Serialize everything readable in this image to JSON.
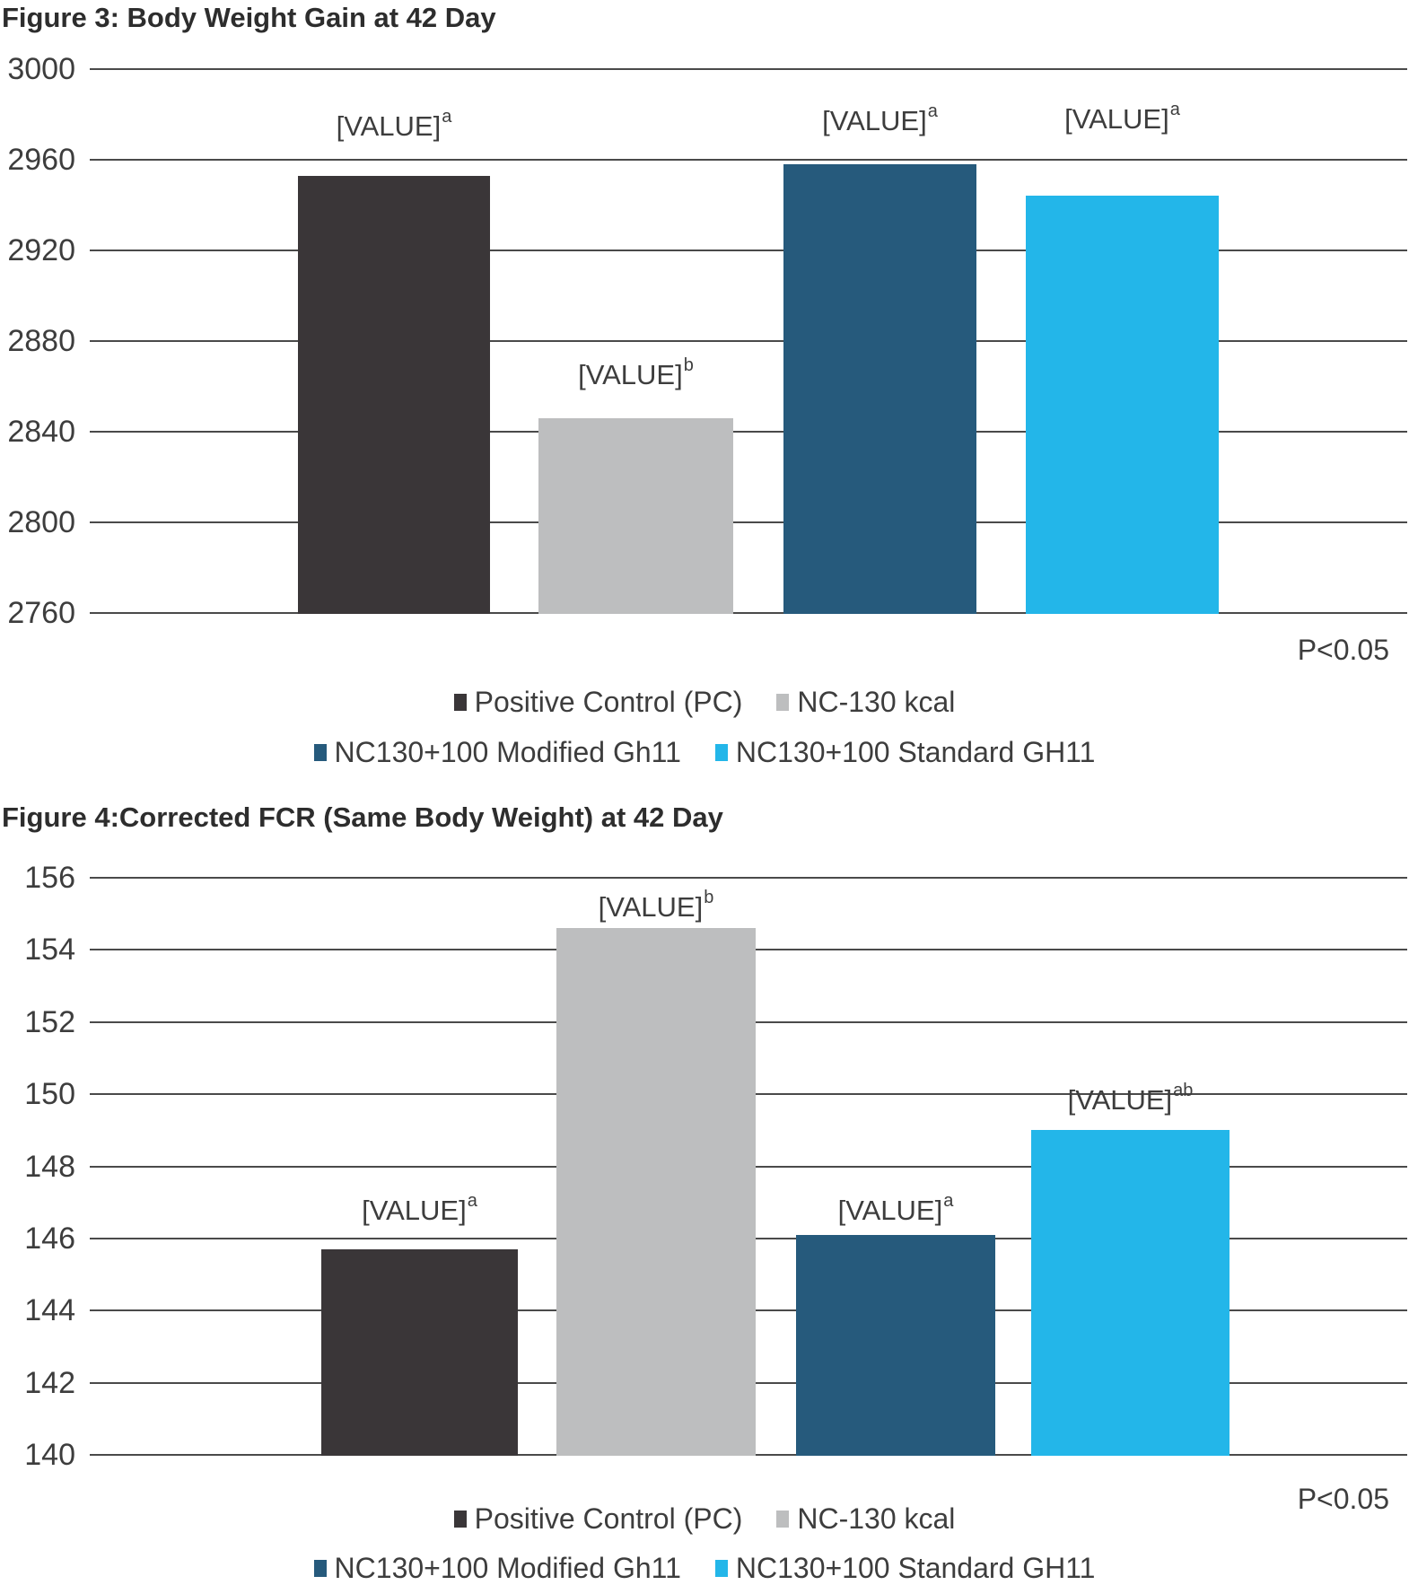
{
  "chart_data": [
    {
      "id": "figure3",
      "type": "bar",
      "title": "Figure 3: Body Weight Gain at 42 Day",
      "categories": [
        "Positive Control (PC)",
        "NC-130 kcal",
        "NC130+100 Modified Gh11",
        "NC130+100 Standard GH11"
      ],
      "values": [
        2953,
        2846,
        2958,
        2944
      ],
      "data_labels": [
        "[VALUE]",
        "[VALUE]",
        "[VALUE]",
        "[VALUE]"
      ],
      "superscripts": [
        "a",
        "b",
        "a",
        "a"
      ],
      "yticks": [
        3000,
        2960,
        2920,
        2880,
        2840,
        2800,
        2760
      ],
      "ylim": [
        2760,
        3000
      ],
      "ytick_step": 40,
      "xlabel": "",
      "ylabel": "",
      "annotation": "P<0.05",
      "grid": true,
      "legend_position": "bottom"
    },
    {
      "id": "figure4",
      "type": "bar",
      "title": "Figure 4:Corrected FCR (Same Body Weight) at 42 Day",
      "categories": [
        "Positive Control (PC)",
        "NC-130 kcal",
        "NC130+100 Modified Gh11",
        "NC130+100 Standard GH11"
      ],
      "values": [
        145.7,
        154.6,
        146.1,
        149.0
      ],
      "data_labels": [
        "[VALUE]",
        "[VALUE]",
        "[VALUE]",
        "[VALUE]"
      ],
      "superscripts": [
        "a",
        "b",
        "a",
        "ab"
      ],
      "yticks": [
        156,
        154,
        152,
        150,
        148,
        146,
        144,
        142,
        140
      ],
      "ylim": [
        140,
        156
      ],
      "ytick_step": 2,
      "xlabel": "",
      "ylabel": "",
      "annotation": "P<0.05",
      "grid": true,
      "legend_position": "bottom"
    }
  ],
  "legend": {
    "items": [
      {
        "label": "Positive Control (PC)",
        "color": "#3a3638"
      },
      {
        "label": "NC-130 kcal",
        "color": "#bdbebf"
      },
      {
        "label": "NC130+100 Modified Gh11",
        "color": "#265a7c"
      },
      {
        "label": "NC130+100 Standard GH11",
        "color": "#23b6e9"
      }
    ],
    "rows": [
      [
        0,
        1
      ],
      [
        2,
        3
      ]
    ]
  },
  "colors": {
    "series": [
      "#3a3638",
      "#bdbebf",
      "#265a7c",
      "#23b6e9"
    ],
    "grid": "#4a4a4a",
    "text": "#3d3d3d",
    "title": "#2d2d2d",
    "background": "#ffffff"
  }
}
